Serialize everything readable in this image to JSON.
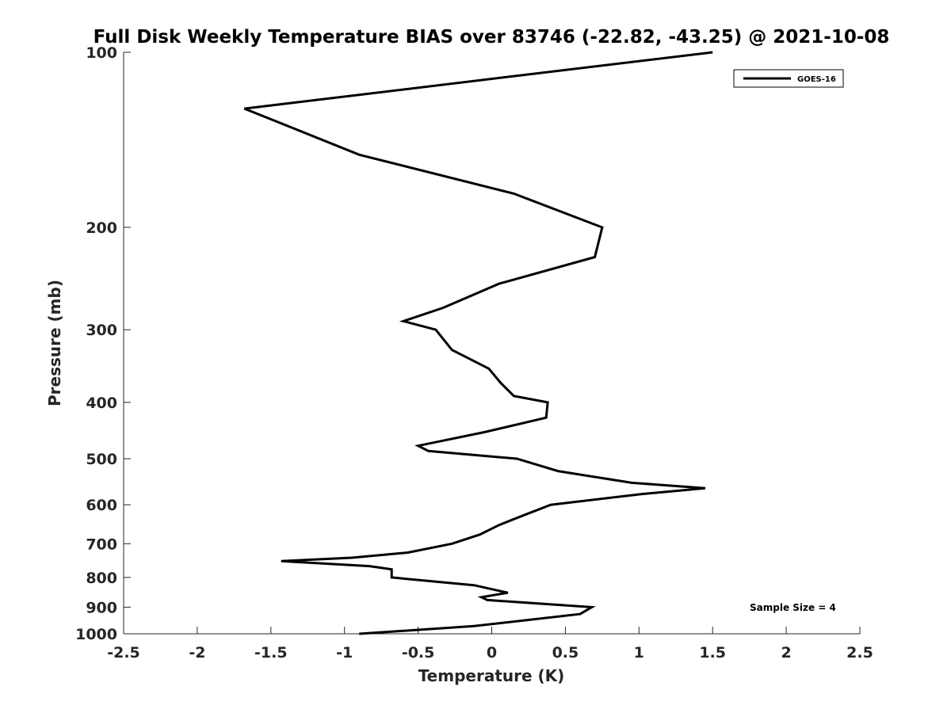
{
  "chart_data": {
    "type": "line",
    "title": "Full Disk Weekly Temperature BIAS over 83746 (-22.82, -43.25) @ 2021-10-08",
    "xlabel": "Temperature (K)",
    "ylabel": "Pressure (mb)",
    "xlim": [
      -2.5,
      2.5
    ],
    "ylim": [
      100,
      1000
    ],
    "y_scale": "log",
    "y_reversed": true,
    "grid": false,
    "x_ticks": [
      "-2.5",
      "-2",
      "-1.5",
      "-1",
      "-0.5",
      "0",
      "0.5",
      "1",
      "1.5",
      "2",
      "2.5"
    ],
    "y_ticks": [
      "100",
      "200",
      "300",
      "400",
      "500",
      "600",
      "700",
      "800",
      "900",
      "1000"
    ],
    "legend_position": "top-right",
    "annotation": "Sample Size = 4",
    "series": [
      {
        "name": "GOES-16",
        "color": "#000000",
        "points": [
          [
            1.5,
            100
          ],
          [
            -1.68,
            125
          ],
          [
            -0.9,
            150
          ],
          [
            0.15,
            175
          ],
          [
            0.75,
            200
          ],
          [
            0.7,
            225
          ],
          [
            0.05,
            250
          ],
          [
            -0.33,
            275
          ],
          [
            -0.6,
            290
          ],
          [
            -0.38,
            300
          ],
          [
            -0.27,
            325
          ],
          [
            -0.02,
            350
          ],
          [
            0.06,
            370
          ],
          [
            0.15,
            390
          ],
          [
            0.38,
            400
          ],
          [
            0.37,
            425
          ],
          [
            -0.05,
            450
          ],
          [
            -0.5,
            475
          ],
          [
            -0.43,
            485
          ],
          [
            0.17,
            500
          ],
          [
            0.45,
            525
          ],
          [
            0.95,
            550
          ],
          [
            1.45,
            562
          ],
          [
            1.02,
            575
          ],
          [
            0.4,
            600
          ],
          [
            0.22,
            625
          ],
          [
            0.05,
            650
          ],
          [
            -0.08,
            675
          ],
          [
            -0.27,
            700
          ],
          [
            -0.57,
            725
          ],
          [
            -0.95,
            740
          ],
          [
            -1.43,
            750
          ],
          [
            -0.83,
            765
          ],
          [
            -0.68,
            775
          ],
          [
            -0.68,
            800
          ],
          [
            -0.12,
            825
          ],
          [
            0.11,
            850
          ],
          [
            -0.07,
            865
          ],
          [
            -0.03,
            875
          ],
          [
            0.68,
            900
          ],
          [
            0.6,
            925
          ],
          [
            -0.12,
            970
          ],
          [
            -0.9,
            1000
          ]
        ]
      }
    ]
  }
}
